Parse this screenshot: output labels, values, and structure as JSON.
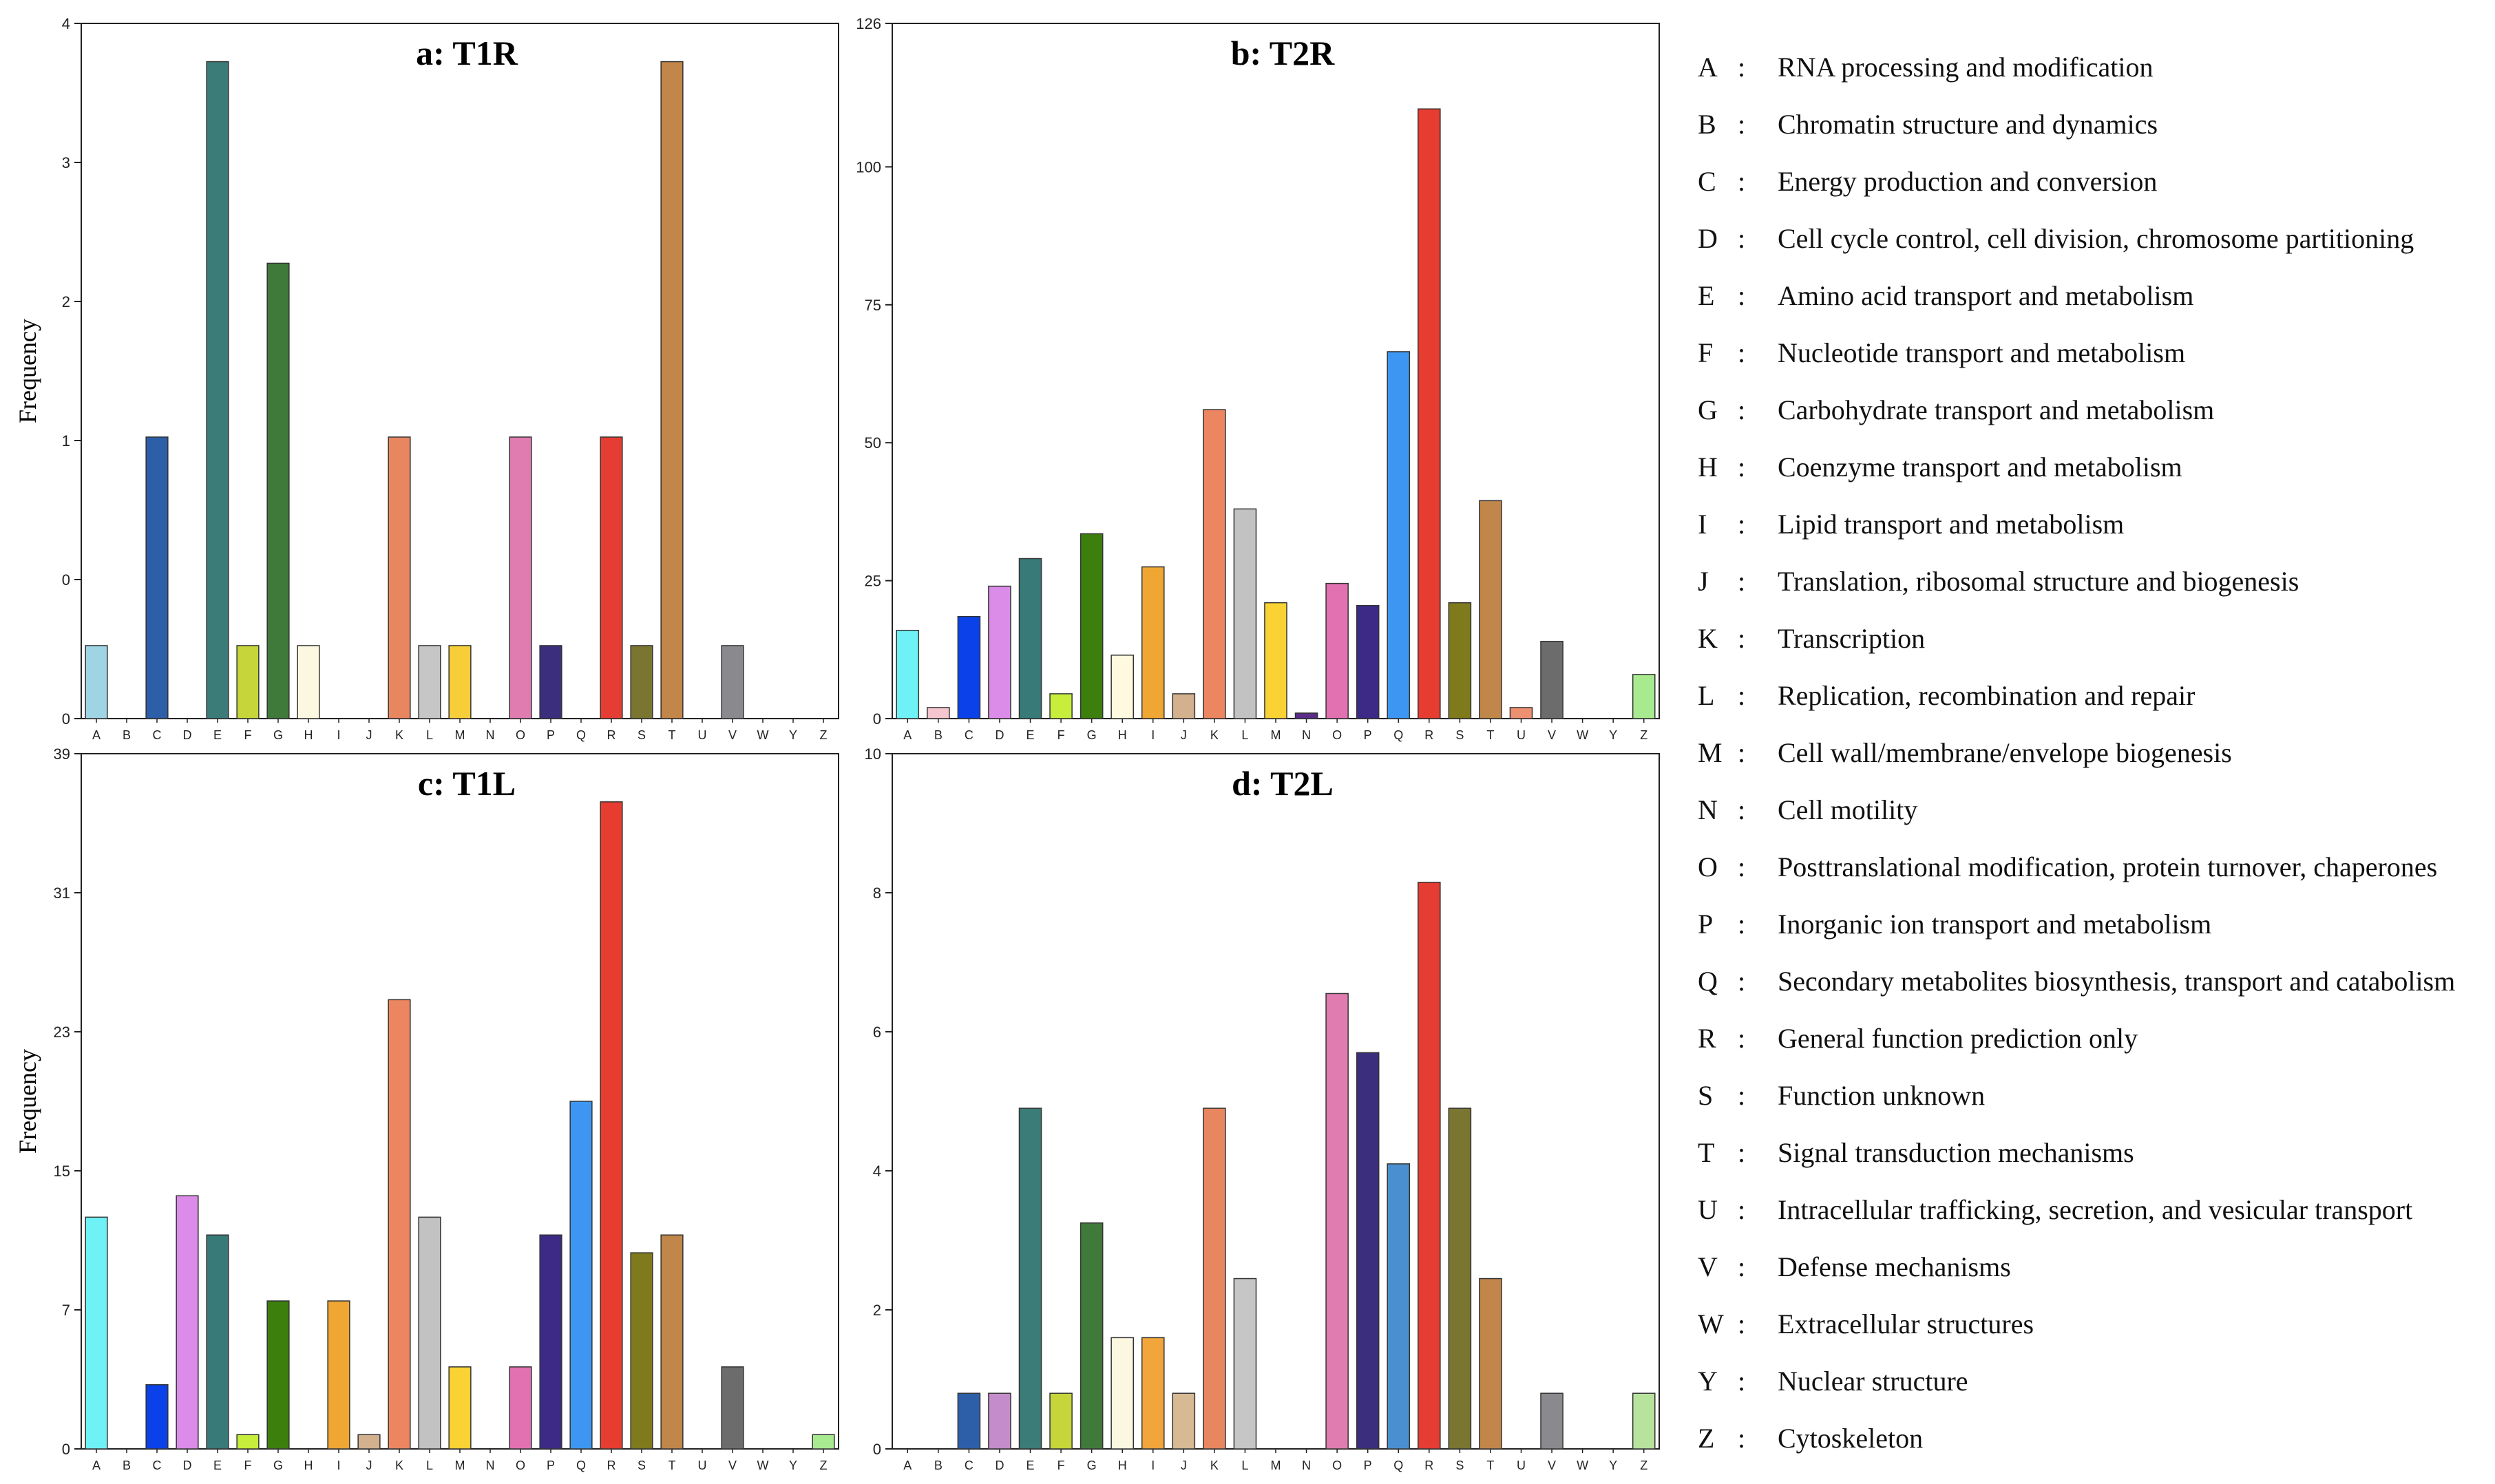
{
  "categories": [
    "A",
    "B",
    "C",
    "D",
    "E",
    "F",
    "G",
    "H",
    "I",
    "J",
    "K",
    "L",
    "M",
    "N",
    "O",
    "P",
    "Q",
    "R",
    "S",
    "T",
    "U",
    "V",
    "W",
    "Y",
    "Z"
  ],
  "legend": [
    {
      "code": "A",
      "sep": ":",
      "desc": "RNA processing and modification"
    },
    {
      "code": "B",
      "sep": ":",
      "desc": "Chromatin structure and dynamics"
    },
    {
      "code": "C",
      "sep": ":",
      "desc": "Energy production and conversion"
    },
    {
      "code": "D",
      "sep": ":",
      "desc": "Cell cycle control, cell division, chromosome partitioning"
    },
    {
      "code": "E",
      "sep": ":",
      "desc": "Amino acid transport and metabolism"
    },
    {
      "code": "F",
      "sep": ":",
      "desc": "Nucleotide transport and metabolism"
    },
    {
      "code": "G",
      "sep": ":",
      "desc": "Carbohydrate transport and metabolism"
    },
    {
      "code": "H",
      "sep": ":",
      "desc": "Coenzyme transport and metabolism"
    },
    {
      "code": "I",
      "sep": ":",
      "desc": "Lipid transport and metabolism"
    },
    {
      "code": "J",
      "sep": ":",
      "desc": "Translation, ribosomal structure and biogenesis"
    },
    {
      "code": "K",
      "sep": ":",
      "desc": "Transcription"
    },
    {
      "code": "L",
      "sep": ":",
      "desc": "Replication, recombination and repair"
    },
    {
      "code": "M",
      "sep": ":",
      "desc": "Cell wall/membrane/envelope biogenesis"
    },
    {
      "code": "N",
      "sep": ":",
      "desc": "Cell motility"
    },
    {
      "code": "O",
      "sep": ":",
      "desc": "Posttranslational modification, protein turnover, chaperones"
    },
    {
      "code": "P",
      "sep": ":",
      "desc": "Inorganic ion transport and metabolism"
    },
    {
      "code": "Q",
      "sep": ":",
      "desc": "Secondary metabolites biosynthesis, transport and catabolism"
    },
    {
      "code": "R",
      "sep": ":",
      "desc": "General function prediction only"
    },
    {
      "code": "S",
      "sep": ":",
      "desc": "Function unknown"
    },
    {
      "code": "T",
      "sep": ":",
      "desc": "Signal transduction mechanisms"
    },
    {
      "code": "U",
      "sep": ":",
      "desc": "Intracellular trafficking, secretion, and vesicular transport"
    },
    {
      "code": "V",
      "sep": ":",
      "desc": "Defense mechanisms"
    },
    {
      "code": "W",
      "sep": ":",
      "desc": "Extracellular structures"
    },
    {
      "code": "Y",
      "sep": ":",
      "desc": "Nuclear structure"
    },
    {
      "code": "Z",
      "sep": ":",
      "desc": "Cytoskeleton"
    }
  ],
  "chart_data": [
    {
      "id": "a",
      "type": "bar",
      "title": "a: T1R",
      "ylabel": "Frequency",
      "xlabel": "",
      "ylim": [
        0,
        4
      ],
      "yticks": [
        {
          "value": 0,
          "label": "0"
        },
        {
          "value": 0.8,
          "label": "0"
        },
        {
          "value": 1.6,
          "label": "1"
        },
        {
          "value": 2.4,
          "label": "2"
        },
        {
          "value": 3.2,
          "label": "3"
        },
        {
          "value": 4,
          "label": "4"
        }
      ],
      "categories": [
        "A",
        "B",
        "C",
        "D",
        "E",
        "F",
        "G",
        "H",
        "I",
        "J",
        "K",
        "L",
        "M",
        "N",
        "O",
        "P",
        "Q",
        "R",
        "S",
        "T",
        "U",
        "V",
        "W",
        "Y",
        "Z"
      ],
      "values": [
        0.42,
        0,
        1.62,
        0,
        3.78,
        0.42,
        2.62,
        0.42,
        0,
        0,
        1.62,
        0.42,
        0.42,
        0,
        1.62,
        0.42,
        0,
        1.62,
        0.42,
        3.78,
        0,
        0.42,
        0,
        0,
        0
      ],
      "colors": [
        "#9fd4e4",
        "#f5c6cf",
        "#2d5ea8",
        "#c58ccb",
        "#3b7b78",
        "#c6d63a",
        "#407a3b",
        "#fbf7e1",
        "#f2a53b",
        "#d7b994",
        "#e8865f",
        "#c6c6c6",
        "#f7ce3a",
        "#7a4b96",
        "#e07cb0",
        "#3b2e7c",
        "#4a90d0",
        "#e53d33",
        "#7a7530",
        "#c2854a",
        "#e6936f",
        "#8a8a8e",
        "#999999",
        "#999999",
        "#b8e39c"
      ]
    },
    {
      "id": "b",
      "type": "bar",
      "title": "b: T2R",
      "ylabel": "",
      "xlabel": "",
      "ylim": [
        0,
        126
      ],
      "yticks": [
        {
          "value": 0,
          "label": "0"
        },
        {
          "value": 25,
          "label": "25"
        },
        {
          "value": 50,
          "label": "50"
        },
        {
          "value": 75,
          "label": "75"
        },
        {
          "value": 100,
          "label": "100"
        },
        {
          "value": 126,
          "label": "126"
        }
      ],
      "categories": [
        "A",
        "B",
        "C",
        "D",
        "E",
        "F",
        "G",
        "H",
        "I",
        "J",
        "K",
        "L",
        "M",
        "N",
        "O",
        "P",
        "Q",
        "R",
        "S",
        "T",
        "U",
        "V",
        "W",
        "Y",
        "Z"
      ],
      "values": [
        16,
        2,
        18.5,
        24,
        29,
        4.5,
        33.5,
        11.5,
        27.5,
        4.5,
        56,
        38,
        21,
        1,
        24.5,
        20.5,
        66.5,
        110.5,
        21,
        39.5,
        2,
        14,
        0,
        0,
        8
      ],
      "colors": [
        "#6ff2f5",
        "#f5c6cf",
        "#0a41e8",
        "#db8ce8",
        "#387a78",
        "#c6ee3a",
        "#3c7f0d",
        "#fff9e0",
        "#f0a633",
        "#d3b08e",
        "#ec8660",
        "#c2c2c2",
        "#fad233",
        "#5b2b8a",
        "#e271b1",
        "#3c2a86",
        "#3d97f2",
        "#e73c30",
        "#7f7a1c",
        "#c1864a",
        "#ed906f",
        "#6c6c6c",
        "#999999",
        "#999999",
        "#a8ea90"
      ]
    },
    {
      "id": "c",
      "type": "bar",
      "title": "c: T1L",
      "ylabel": "Frequency",
      "xlabel": "",
      "ylim": [
        0,
        39
      ],
      "yticks": [
        {
          "value": 0,
          "label": "0"
        },
        {
          "value": 7.8,
          "label": "7"
        },
        {
          "value": 15.6,
          "label": "15"
        },
        {
          "value": 23.4,
          "label": "23"
        },
        {
          "value": 31.2,
          "label": "31"
        },
        {
          "value": 39,
          "label": "39"
        }
      ],
      "categories": [
        "A",
        "B",
        "C",
        "D",
        "E",
        "F",
        "G",
        "H",
        "I",
        "J",
        "K",
        "L",
        "M",
        "N",
        "O",
        "P",
        "Q",
        "R",
        "S",
        "T",
        "U",
        "V",
        "W",
        "Y",
        "Z"
      ],
      "values": [
        13,
        0,
        3.6,
        14.2,
        12,
        0.8,
        8.3,
        0,
        8.3,
        0.8,
        25.2,
        13,
        4.6,
        0,
        4.6,
        12,
        19.5,
        36.3,
        11,
        12,
        0,
        4.6,
        0,
        0,
        0.8
      ],
      "colors": [
        "#6ff2f5",
        "#f5c6cf",
        "#0a41e8",
        "#db8ce8",
        "#387a78",
        "#c6ee3a",
        "#3c7f0d",
        "#fff9e0",
        "#f0a633",
        "#d3b08e",
        "#ec8660",
        "#c2c2c2",
        "#fad233",
        "#5b2b8a",
        "#e271b1",
        "#3c2a86",
        "#3d97f2",
        "#e73c30",
        "#7f7a1c",
        "#c1864a",
        "#ed906f",
        "#6c6c6c",
        "#999999",
        "#999999",
        "#a8ea90"
      ]
    },
    {
      "id": "d",
      "type": "bar",
      "title": "d: T2L",
      "ylabel": "",
      "xlabel": "",
      "ylim": [
        0,
        10
      ],
      "yticks": [
        {
          "value": 0,
          "label": "0"
        },
        {
          "value": 2,
          "label": "2"
        },
        {
          "value": 4,
          "label": "4"
        },
        {
          "value": 6,
          "label": "6"
        },
        {
          "value": 8,
          "label": "8"
        },
        {
          "value": 10,
          "label": "10"
        }
      ],
      "categories": [
        "A",
        "B",
        "C",
        "D",
        "E",
        "F",
        "G",
        "H",
        "I",
        "J",
        "K",
        "L",
        "M",
        "N",
        "O",
        "P",
        "Q",
        "R",
        "S",
        "T",
        "U",
        "V",
        "W",
        "Y",
        "Z"
      ],
      "values": [
        0,
        0,
        0.8,
        0.8,
        4.9,
        0.8,
        3.25,
        1.6,
        1.6,
        0.8,
        4.9,
        2.45,
        0,
        0,
        6.55,
        5.7,
        4.1,
        8.15,
        4.9,
        2.45,
        0,
        0.8,
        0,
        0,
        0.8
      ],
      "colors": [
        "#9fd4e4",
        "#f5c6cf",
        "#2d5ea8",
        "#c58ccb",
        "#3b7b78",
        "#c6d63a",
        "#407a3b",
        "#fbf7e1",
        "#f2a53b",
        "#d7b994",
        "#e8865f",
        "#c6c6c6",
        "#f7ce3a",
        "#7a4b96",
        "#e07cb0",
        "#3b2e7c",
        "#4a90d0",
        "#e53d33",
        "#7a7530",
        "#c2854a",
        "#e6936f",
        "#8a8a8e",
        "#999999",
        "#999999",
        "#b8e39c"
      ]
    }
  ]
}
